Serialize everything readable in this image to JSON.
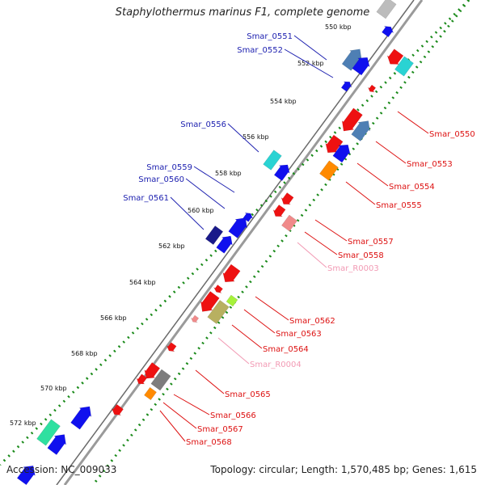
{
  "header": {
    "title": "Staphylothermus marinus F1, complete genome"
  },
  "footer": {
    "accession": "Accession: NC_009033",
    "stats": "Topology: circular; Length: 1,570,485 bp; Genes: 1,615"
  },
  "colors": {
    "backbone": "#888888",
    "tick_dots": "#1a8a1a",
    "label_blue": "#1f22b0",
    "label_red": "#dd1111",
    "label_pink": "#f29ab4",
    "gene_blue": "#1010ee",
    "gene_red": "#ee1111",
    "gene_steel": "#4e7fb4",
    "gene_cyan": "#2ad3d3",
    "gene_orange": "#ff8a00",
    "gene_olive": "#b8b060",
    "gene_green_light": "#a6f23a",
    "gene_teal_green": "#2fe0a0",
    "gene_gray": "#7d7d7d",
    "gene_navy": "#1a1a8a",
    "gene_pink": "#f08a8a"
  },
  "scale_labels": [
    "550 kbp",
    "552 kbp",
    "554 kbp",
    "556 kbp",
    "558 kbp",
    "560 kbp",
    "562 kbp",
    "564 kbp",
    "566 kbp",
    "568 kbp",
    "570 kbp",
    "572 kbp"
  ],
  "gene_labels_left": [
    {
      "text": "Smar_0551",
      "color": "blue"
    },
    {
      "text": "Smar_0552",
      "color": "blue"
    },
    {
      "text": "Smar_0556",
      "color": "blue"
    },
    {
      "text": "Smar_0559",
      "color": "blue"
    },
    {
      "text": "Smar_0560",
      "color": "blue"
    },
    {
      "text": "Smar_0561",
      "color": "blue"
    }
  ],
  "gene_labels_right": [
    {
      "text": "Smar_0550",
      "color": "red"
    },
    {
      "text": "Smar_0553",
      "color": "red"
    },
    {
      "text": "Smar_0554",
      "color": "red"
    },
    {
      "text": "Smar_0555",
      "color": "red"
    },
    {
      "text": "Smar_0557",
      "color": "red"
    },
    {
      "text": "Smar_0558",
      "color": "red"
    },
    {
      "text": "Smar_R0003",
      "color": "pink"
    },
    {
      "text": "Smar_0562",
      "color": "red"
    },
    {
      "text": "Smar_0563",
      "color": "red"
    },
    {
      "text": "Smar_0564",
      "color": "red"
    },
    {
      "text": "Smar_R0004",
      "color": "pink"
    },
    {
      "text": "Smar_0565",
      "color": "red"
    },
    {
      "text": "Smar_0566",
      "color": "red"
    },
    {
      "text": "Smar_0567",
      "color": "red"
    },
    {
      "text": "Smar_0568",
      "color": "red"
    }
  ]
}
